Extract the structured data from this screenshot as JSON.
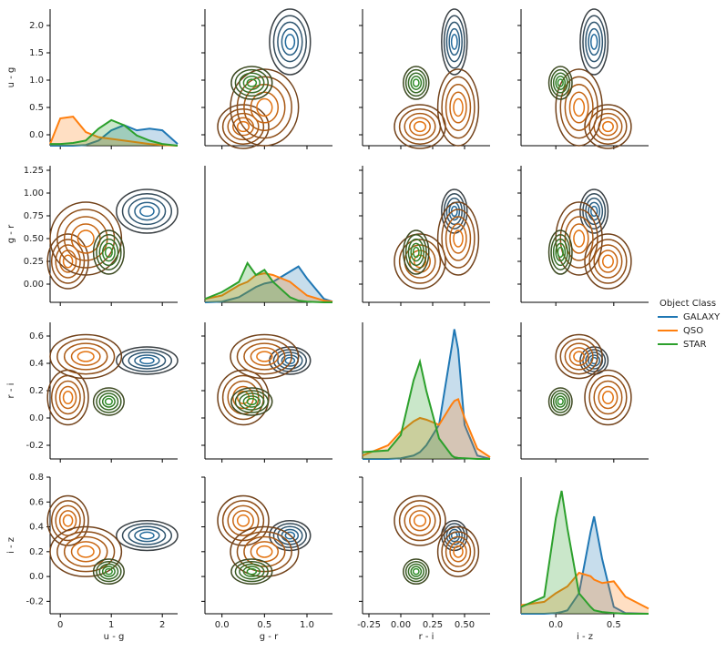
{
  "chart_data": {
    "type": "pairplot",
    "legend_title": "Object Class",
    "variables": [
      {
        "label": "u - g",
        "lim": [
          -0.2,
          2.3
        ],
        "xticks": [
          0,
          1,
          2
        ],
        "yticks": [
          {
            "value": 0,
            "label": "0.0"
          },
          0.5,
          {
            "value": 1,
            "label": "1.0"
          },
          1.5,
          {
            "value": 2,
            "label": "2.0"
          }
        ],
        "kde_x": [
          -0.2,
          0,
          0.25,
          0.5,
          0.75,
          1.0,
          1.25,
          1.5,
          1.75,
          2.0,
          2.3
        ]
      },
      {
        "label": "g - r",
        "lim": [
          -0.2,
          1.3
        ],
        "xticks": [
          {
            "value": 0,
            "label": "0.0"
          },
          0.5,
          {
            "value": 1,
            "label": "1.0"
          }
        ],
        "yticks": [
          {
            "value": 0,
            "label": "0.00"
          },
          0.25,
          {
            "value": 0.5,
            "label": "0.50"
          },
          0.75,
          {
            "value": 1,
            "label": "1.00"
          },
          1.25
        ],
        "kde_x": [
          -0.2,
          0,
          0.2,
          0.3,
          0.4,
          0.5,
          0.6,
          0.8,
          0.9,
          1.0,
          1.2,
          1.3
        ]
      },
      {
        "label": "r - i",
        "lim": [
          -0.3,
          0.7
        ],
        "xticks": [
          -0.25,
          {
            "value": 0,
            "label": "0.00"
          },
          0.25,
          {
            "value": 0.5,
            "label": "0.50"
          }
        ],
        "yticks": [
          -0.2,
          {
            "value": 0,
            "label": "0.0"
          },
          0.2,
          0.4,
          0.6
        ],
        "kde_x": [
          -0.3,
          -0.1,
          0,
          0.1,
          0.15,
          0.2,
          0.3,
          0.4,
          0.42,
          0.45,
          0.5,
          0.6,
          0.7
        ]
      },
      {
        "label": "i - z",
        "lim": [
          -0.3,
          0.8
        ],
        "xticks": [
          {
            "value": 0,
            "label": "0.0"
          },
          0.5
        ],
        "yticks": [
          -0.2,
          {
            "value": 0,
            "label": "0.0"
          },
          0.2,
          0.4,
          0.6,
          0.8
        ],
        "kde_x": [
          -0.3,
          -0.1,
          0,
          0.05,
          0.1,
          0.2,
          0.3,
          0.33,
          0.4,
          0.5,
          0.6,
          0.8
        ]
      }
    ],
    "density_lim": [
      0,
      4
    ],
    "series": [
      {
        "name": "GALAXY",
        "color": "#1f77b4",
        "density": [
          [
            0,
            0,
            0,
            0.02,
            0.15,
            0.45,
            0.6,
            0.45,
            0.5,
            0.45,
            0.05
          ],
          [
            0,
            0.02,
            0.15,
            0.3,
            0.45,
            0.55,
            0.6,
            0.9,
            1.05,
            0.7,
            0.1,
            0.02
          ],
          [
            0,
            0,
            0.02,
            0.1,
            0.2,
            0.4,
            1.0,
            3.3,
            3.8,
            3.2,
            1.0,
            0.1,
            0
          ],
          [
            0,
            0,
            0.02,
            0.05,
            0.1,
            0.6,
            2.4,
            2.85,
            1.6,
            0.2,
            0.02,
            0
          ]
        ],
        "modes": [
          {
            "center": [
              1.7,
              0.8,
              0.42,
              0.33
            ],
            "spread": [
              0.3,
              0.12,
              0.05,
              0.06
            ]
          }
        ]
      },
      {
        "name": "QSO",
        "color": "#ff7f0e",
        "density": [
          [
            0.05,
            0.8,
            0.85,
            0.4,
            0.25,
            0.2,
            0.15,
            0.1,
            0.05,
            0.02,
            0
          ],
          [
            0.1,
            0.2,
            0.5,
            0.6,
            0.8,
            0.85,
            0.8,
            0.6,
            0.4,
            0.2,
            0.05,
            0.02
          ],
          [
            0.1,
            0.4,
            0.8,
            1.1,
            1.2,
            1.15,
            1.0,
            1.6,
            1.7,
            1.75,
            1.2,
            0.3,
            0.05
          ],
          [
            0.25,
            0.35,
            0.6,
            0.7,
            0.8,
            1.2,
            1.1,
            1.0,
            0.9,
            0.95,
            0.5,
            0.15
          ]
        ],
        "modes": [
          {
            "center": [
              0.15,
              0.25,
              0.15,
              0.45
            ],
            "spread": [
              0.2,
              0.15,
              0.1,
              0.1
            ]
          },
          {
            "center": [
              0.5,
              0.5,
              0.45,
              0.2
            ],
            "spread": [
              0.35,
              0.2,
              0.08,
              0.1
            ]
          }
        ]
      },
      {
        "name": "STAR",
        "color": "#2ca02c",
        "density": [
          [
            0.05,
            0.05,
            0.08,
            0.15,
            0.5,
            0.75,
            0.6,
            0.3,
            0.15,
            0.05,
            0
          ],
          [
            0.1,
            0.3,
            0.6,
            1.15,
            0.8,
            0.95,
            0.6,
            0.15,
            0.05,
            0.02,
            0,
            0
          ],
          [
            0.2,
            0.25,
            0.7,
            2.3,
            2.85,
            2.0,
            0.6,
            0.1,
            0.05,
            0.03,
            0.02,
            0,
            0
          ],
          [
            0.2,
            0.5,
            2.8,
            3.6,
            2.5,
            0.6,
            0.2,
            0.1,
            0.05,
            0.02,
            0,
            0
          ]
        ],
        "modes": [
          {
            "center": [
              0.95,
              0.35,
              0.12,
              0.04
            ],
            "spread": [
              0.15,
              0.12,
              0.05,
              0.05
            ]
          }
        ]
      }
    ]
  }
}
